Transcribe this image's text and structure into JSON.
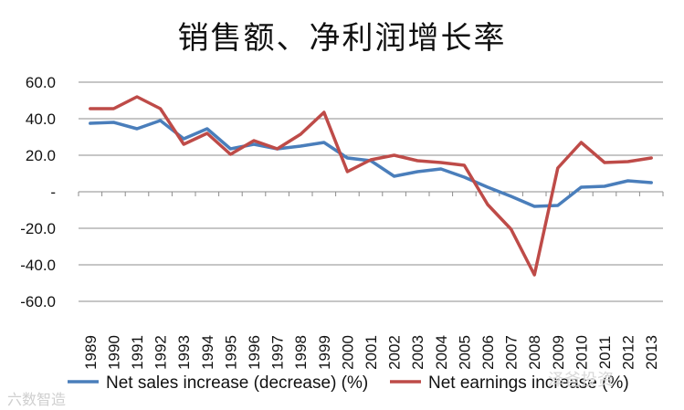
{
  "chart_data": {
    "type": "line",
    "title": "销售额、净利润增长率",
    "categories": [
      "1989",
      "1990",
      "1991",
      "1992",
      "1993",
      "1994",
      "1995",
      "1996",
      "1997",
      "1998",
      "1999",
      "2000",
      "2001",
      "2002",
      "2003",
      "2004",
      "2005",
      "2006",
      "2007",
      "2008",
      "2009",
      "2010",
      "2011",
      "2012",
      "2013"
    ],
    "ylim": [
      -60,
      60
    ],
    "yticks": [
      {
        "value": 60,
        "label": "60.0"
      },
      {
        "value": 40,
        "label": "40.0"
      },
      {
        "value": 20,
        "label": "20.0"
      },
      {
        "value": 0,
        "label": "-"
      },
      {
        "value": -20,
        "label": "-20.0"
      },
      {
        "value": -40,
        "label": "-40.0"
      },
      {
        "value": -60,
        "label": "-60.0"
      }
    ],
    "grid": true,
    "legend_position": "bottom",
    "series": [
      {
        "name": "Net sales increase (decrease) (%)",
        "color": "#4a7ebb",
        "values": [
          37.5,
          38,
          34.5,
          39,
          29,
          34.5,
          23.5,
          26,
          23.5,
          25,
          27,
          18.5,
          17,
          8.5,
          11,
          12.5,
          8,
          2.5,
          -2.5,
          -8,
          -7.5,
          2.5,
          3,
          6,
          5
        ]
      },
      {
        "name": "Net earnings increase (%)",
        "color": "#be4b48",
        "values": [
          45.5,
          45.5,
          52,
          45.5,
          26,
          32,
          20.5,
          28,
          23.5,
          31.5,
          43.5,
          11,
          17.5,
          20,
          17,
          16,
          14.5,
          -7,
          -20.5,
          -45.5,
          13,
          27,
          16,
          16.5,
          18.5
        ]
      }
    ]
  },
  "watermarks": {
    "left": "六数智造",
    "right": "泽爸投资"
  }
}
